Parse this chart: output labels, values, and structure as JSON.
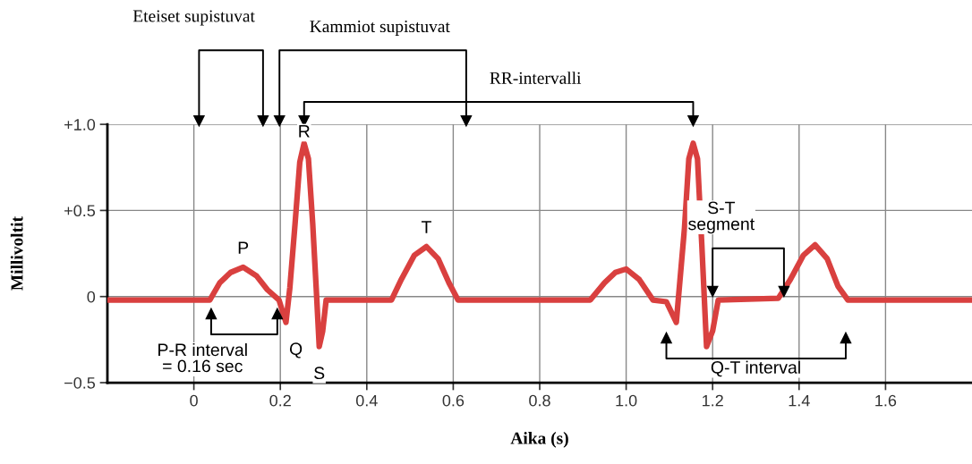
{
  "chart_data": {
    "type": "line",
    "xlabel": "Aika (s)",
    "ylabel": "Millivoltit",
    "x": [
      -0.2,
      0.037,
      0.06,
      0.085,
      0.114,
      0.145,
      0.17,
      0.197,
      0.213,
      0.222,
      0.234,
      0.245,
      0.255,
      0.265,
      0.275,
      0.283,
      0.29,
      0.298,
      0.306,
      0.457,
      0.48,
      0.51,
      0.538,
      0.565,
      0.59,
      0.611,
      0.917,
      0.95,
      0.975,
      1.0,
      1.03,
      1.062,
      1.093,
      1.116,
      1.135,
      1.145,
      1.155,
      1.165,
      1.175,
      1.186,
      1.2,
      1.213,
      1.352,
      1.38,
      1.41,
      1.437,
      1.465,
      1.49,
      1.513,
      1.8
    ],
    "series": [
      {
        "color": "#d9403f",
        "values": [
          -0.02,
          -0.02,
          0.08,
          0.14,
          0.17,
          0.12,
          0.04,
          -0.02,
          -0.15,
          0.05,
          0.42,
          0.78,
          0.89,
          0.8,
          0.42,
          0.05,
          -0.29,
          -0.2,
          -0.02,
          -0.02,
          0.1,
          0.24,
          0.29,
          0.22,
          0.08,
          -0.02,
          -0.02,
          0.08,
          0.14,
          0.16,
          0.1,
          -0.02,
          -0.03,
          -0.15,
          0.4,
          0.8,
          0.89,
          0.8,
          0.3,
          -0.29,
          -0.2,
          -0.02,
          -0.01,
          0.1,
          0.24,
          0.3,
          0.22,
          0.06,
          -0.02,
          -0.02
        ]
      }
    ],
    "xlim": [
      -0.2,
      1.8
    ],
    "xticks": [
      0,
      0.2,
      0.4,
      0.6,
      0.8,
      {
        "value": 1.0,
        "label": "1.0"
      },
      1.2,
      1.4,
      1.6
    ],
    "ylim": [
      -0.5,
      1.0
    ],
    "yticks": [
      {
        "value": -0.5,
        "label": "−0.5"
      },
      0,
      {
        "value": 0.5,
        "label": "+0.5"
      },
      {
        "value": 1.0,
        "label": "+1.0"
      }
    ],
    "grid": true,
    "line_style": "solid",
    "marker": "none",
    "annotations": [
      {
        "text": "P",
        "x": 0.114,
        "y": 0.17
      },
      {
        "text": "Q",
        "x": 0.213,
        "y": -0.15
      },
      {
        "text": "R",
        "x": 0.255,
        "y": 0.89
      },
      {
        "text": "S",
        "x": 0.29,
        "y": -0.29
      },
      {
        "text": "T",
        "x": 0.538,
        "y": 0.29
      },
      "Eteiset supistuvat",
      "Kammiot supistuvat",
      "RR-intervalli",
      "P-R interval\n= 0.16 sec",
      "S-T\nsegment",
      "Q-T interval"
    ]
  }
}
